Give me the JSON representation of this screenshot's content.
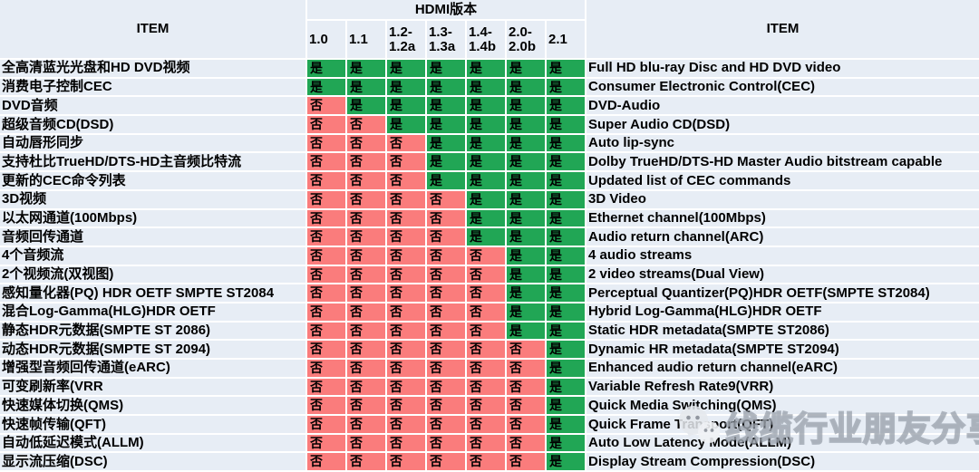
{
  "header": {
    "item_label": "ITEM",
    "hdmi_version_label": "HDMI版本",
    "versions": [
      "1.0",
      "1.1",
      "1.2-\n1.2a",
      "1.3-\n1.3a",
      "1.4-\n1.4b",
      "2.0-\n2.0b",
      "2.1"
    ]
  },
  "cells": {
    "yes": "是",
    "no": "否"
  },
  "colors": {
    "yes_bg": "#21A655",
    "no_bg": "#FA7C7C",
    "header_bg": "#E7EDF5",
    "grid_line": "#FFFFFF",
    "text": "#000000"
  },
  "rows": [
    {
      "cn": "全高清蓝光光盘和HD DVD视频",
      "en": "Full HD blu-ray Disc and HD DVD video",
      "support": [
        "是",
        "是",
        "是",
        "是",
        "是",
        "是",
        "是"
      ]
    },
    {
      "cn": "消费电子控制CEC",
      "en": "Consumer Electronic Control(CEC)",
      "support": [
        "是",
        "是",
        "是",
        "是",
        "是",
        "是",
        "是"
      ]
    },
    {
      "cn": "DVD音频",
      "en": "DVD-Audio",
      "support": [
        "否",
        "是",
        "是",
        "是",
        "是",
        "是",
        "是"
      ]
    },
    {
      "cn": "超级音频CD(DSD)",
      "en": "Super Audio CD(DSD)",
      "support": [
        "否",
        "否",
        "是",
        "是",
        "是",
        "是",
        "是"
      ]
    },
    {
      "cn": "自动唇形同步",
      "en": "Auto lip-sync",
      "support": [
        "否",
        "否",
        "否",
        "是",
        "是",
        "是",
        "是"
      ]
    },
    {
      "cn": "支持杜比TrueHD/DTS-HD主音频比特流",
      "en": "Dolby TrueHD/DTS-HD Master Audio bitstream capable",
      "support": [
        "否",
        "否",
        "否",
        "是",
        "是",
        "是",
        "是"
      ]
    },
    {
      "cn": "更新的CEC命令列表",
      "en": "Updated list of CEC commands",
      "support": [
        "否",
        "否",
        "否",
        "是",
        "是",
        "是",
        "是"
      ]
    },
    {
      "cn": "3D视频",
      "en": "3D Video",
      "support": [
        "否",
        "否",
        "否",
        "否",
        "是",
        "是",
        "是"
      ]
    },
    {
      "cn": "以太网通道(100Mbps)",
      "en": "Ethernet channel(100Mbps)",
      "support": [
        "否",
        "否",
        "否",
        "否",
        "是",
        "是",
        "是"
      ]
    },
    {
      "cn": "音频回传通道",
      "en": "Audio return channel(ARC)",
      "support": [
        "否",
        "否",
        "否",
        "否",
        "是",
        "是",
        "是"
      ]
    },
    {
      "cn": "4个音频流",
      "en": "4 audio streams",
      "support": [
        "否",
        "否",
        "否",
        "否",
        "否",
        "是",
        "是"
      ]
    },
    {
      "cn": "2个视频流(双视图)",
      "en": "2 video streams(Dual View)",
      "support": [
        "否",
        "否",
        "否",
        "否",
        "否",
        "是",
        "是"
      ]
    },
    {
      "cn": "感知量化器(PQ) HDR OETF SMPTE ST2084",
      "en": "Perceptual Quantizer(PQ)HDR OETF(SMPTE ST2084)",
      "support": [
        "否",
        "否",
        "否",
        "否",
        "否",
        "是",
        "是"
      ]
    },
    {
      "cn": "混合Log-Gamma(HLG)HDR OETF",
      "en": "Hybrid Log-Gamma(HLG)HDR OETF",
      "support": [
        "否",
        "否",
        "否",
        "否",
        "否",
        "是",
        "是"
      ]
    },
    {
      "cn": "静态HDR元数据(SMPTE ST 2086)",
      "en": "Static HDR metadata(SMPTE ST2086)",
      "support": [
        "否",
        "否",
        "否",
        "否",
        "否",
        "是",
        "是"
      ]
    },
    {
      "cn": "动态HDR元数据(SMPTE ST 2094)",
      "en": "Dynamic HR metadata(SMPTE ST2094)",
      "support": [
        "否",
        "否",
        "否",
        "否",
        "否",
        "否",
        "是"
      ]
    },
    {
      "cn": "增强型音频回传通道(eARC)",
      "en": "Enhanced audio return channel(eARC)",
      "support": [
        "否",
        "否",
        "否",
        "否",
        "否",
        "否",
        "是"
      ]
    },
    {
      "cn": "可变刷新率(VRR",
      "en": "Variable Refresh Rate9(VRR)",
      "support": [
        "否",
        "否",
        "否",
        "否",
        "否",
        "否",
        "是"
      ]
    },
    {
      "cn": "快速媒体切换(QMS)",
      "en": "Quick Media Switching(QMS)",
      "support": [
        "否",
        "否",
        "否",
        "否",
        "否",
        "否",
        "是"
      ]
    },
    {
      "cn": "快速帧传输(QFT)",
      "en": "Quick Frame Transport(QFT)",
      "support": [
        "否",
        "否",
        "否",
        "否",
        "否",
        "否",
        "是"
      ]
    },
    {
      "cn": "自动低延迟模式(ALLM)",
      "en": "Auto Low Latency Mode(ALLM)",
      "support": [
        "否",
        "否",
        "否",
        "否",
        "否",
        "否",
        "是"
      ]
    },
    {
      "cn": "显示流压缩(DSC)",
      "en": "Display Stream Compression(DSC)",
      "support": [
        "否",
        "否",
        "否",
        "否",
        "否",
        "否",
        "是"
      ]
    }
  ],
  "watermark": {
    "text": "线缆行业朋友分享圈",
    "logo_icon": "wechat-bubbles-icon"
  }
}
